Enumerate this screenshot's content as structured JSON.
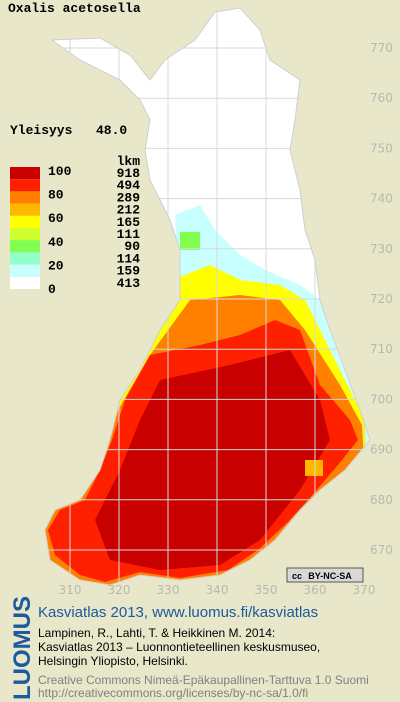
{
  "title": "Oxalis acetosella",
  "frequency": {
    "label": "Yleisyys",
    "value": "48.0"
  },
  "legend": {
    "scale": [
      100,
      80,
      60,
      40,
      20,
      0
    ],
    "count_header": "lkm",
    "counts": [
      918,
      494,
      289,
      212,
      165,
      111,
      90,
      114,
      159,
      413
    ],
    "colors": [
      "#c80000",
      "#ff2000",
      "#ff8000",
      "#ffb800",
      "#ffff00",
      "#d0ff30",
      "#80ff50",
      "#90ffc8",
      "#c8ffff",
      "#ffffff"
    ]
  },
  "map_grid": {
    "northing_labels": [
      770,
      760,
      750,
      740,
      730,
      720,
      710,
      700,
      690,
      680,
      670
    ],
    "easting_labels": [
      310,
      320,
      330,
      340,
      350,
      360,
      370
    ]
  },
  "license_badge": {
    "icon": "cc",
    "text": "BY-NC-SA"
  },
  "footer": {
    "logo": "LUOMUS",
    "headline": "Kasviatlas 2013, www.luomus.fi/kasviatlas",
    "citation": [
      "Lampinen, R., Lahti, T. & Heikkinen M. 2014:",
      "Kasviatlas 2013 – Luonnontieteellinen keskusmuseo,",
      "Helsingin Yliopisto, Helsinki."
    ],
    "license": [
      "Creative Commons Nimeä-Epäkaupallinen-Tarttuva 1.0 Suomi",
      "http://creativecommons.org/licenses/by-nc-sa/1.0/fi"
    ]
  }
}
